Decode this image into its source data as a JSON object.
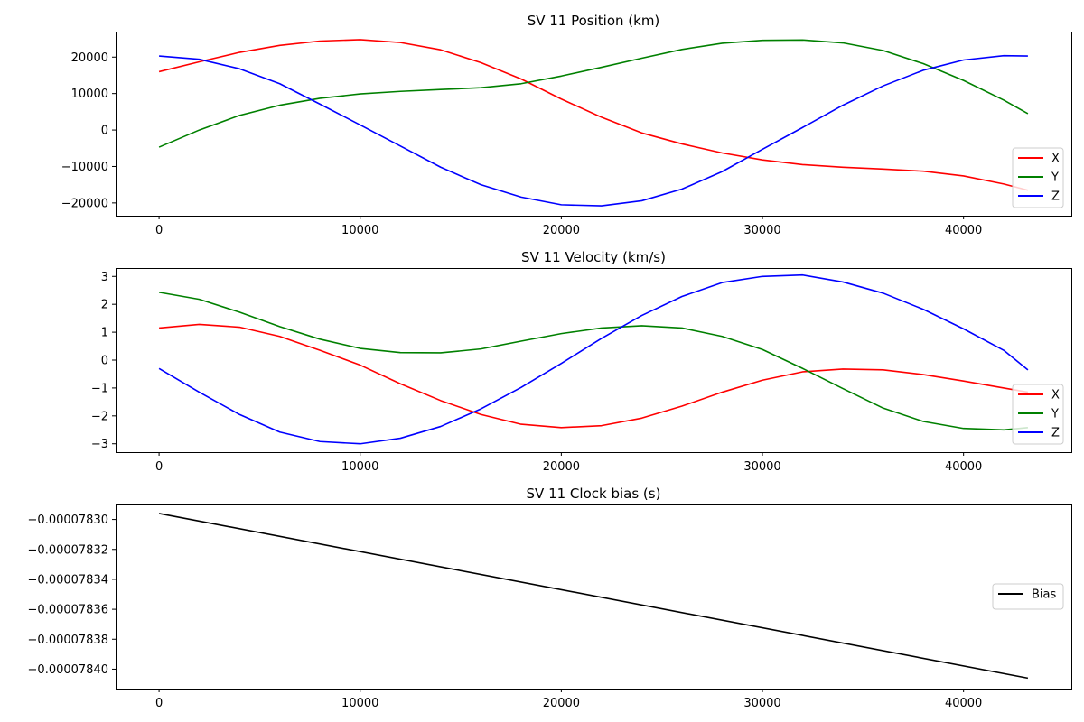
{
  "chart_data": [
    {
      "type": "line",
      "title": "SV 11 Position (km)",
      "xlabel": "",
      "ylabel": "",
      "xlim": [
        -2160,
        45360
      ],
      "ylim": [
        -23500,
        27000
      ],
      "xticks": [
        0,
        10000,
        20000,
        30000,
        40000
      ],
      "xtick_labels": [
        "0",
        "10000",
        "20000",
        "30000",
        "40000"
      ],
      "yticks": [
        -20000,
        -10000,
        0,
        10000,
        20000
      ],
      "ytick_labels": [
        "−20000",
        "−10000",
        "0",
        "10000",
        "20000"
      ],
      "grid": false,
      "legend": "lower-right",
      "x": [
        0,
        2000,
        4000,
        6000,
        8000,
        10000,
        12000,
        14000,
        16000,
        18000,
        20000,
        22000,
        24000,
        26000,
        28000,
        30000,
        32000,
        34000,
        36000,
        38000,
        40000,
        42000,
        43200
      ],
      "series": [
        {
          "name": "X",
          "color": "#ff0000",
          "values": [
            16000,
            18700,
            21300,
            23200,
            24400,
            24800,
            24000,
            22000,
            18500,
            14000,
            8500,
            3500,
            -800,
            -3800,
            -6300,
            -8200,
            -9500,
            -10200,
            -10700,
            -11300,
            -12600,
            -14800,
            -16500
          ]
        },
        {
          "name": "Y",
          "color": "#008000",
          "values": [
            -4700,
            0,
            4000,
            6800,
            8700,
            9900,
            10600,
            11100,
            11600,
            12700,
            14800,
            17200,
            19700,
            22100,
            23800,
            24600,
            24700,
            23900,
            21800,
            18200,
            13600,
            8200,
            4500
          ]
        },
        {
          "name": "Z",
          "color": "#0000ff",
          "values": [
            20300,
            19400,
            16800,
            12700,
            7100,
            1400,
            -4400,
            -10200,
            -15000,
            -18400,
            -20500,
            -20800,
            -19400,
            -16200,
            -11400,
            -5300,
            700,
            6800,
            12100,
            16400,
            19200,
            20400,
            20300
          ]
        }
      ]
    },
    {
      "type": "line",
      "title": "SV 11 Velocity (km/s)",
      "xlabel": "",
      "ylabel": "",
      "xlim": [
        -2160,
        45360
      ],
      "ylim": [
        -3.3,
        3.3
      ],
      "xticks": [
        0,
        10000,
        20000,
        30000,
        40000
      ],
      "xtick_labels": [
        "0",
        "10000",
        "20000",
        "30000",
        "40000"
      ],
      "yticks": [
        -3,
        -2,
        -1,
        0,
        1,
        2,
        3
      ],
      "ytick_labels": [
        "−3",
        "−2",
        "−1",
        "0",
        "1",
        "2",
        "3"
      ],
      "grid": false,
      "legend": "lower-right",
      "x": [
        0,
        2000,
        4000,
        6000,
        8000,
        10000,
        12000,
        14000,
        16000,
        18000,
        20000,
        22000,
        24000,
        26000,
        28000,
        30000,
        32000,
        34000,
        36000,
        38000,
        40000,
        42000,
        43200
      ],
      "series": [
        {
          "name": "X",
          "color": "#ff0000",
          "values": [
            1.15,
            1.28,
            1.18,
            0.85,
            0.35,
            -0.18,
            -0.85,
            -1.45,
            -1.95,
            -2.3,
            -2.42,
            -2.35,
            -2.08,
            -1.65,
            -1.15,
            -0.72,
            -0.42,
            -0.32,
            -0.35,
            -0.52,
            -0.75,
            -1.0,
            -1.15
          ]
        },
        {
          "name": "Y",
          "color": "#008000",
          "values": [
            2.43,
            2.18,
            1.72,
            1.2,
            0.75,
            0.42,
            0.27,
            0.26,
            0.4,
            0.68,
            0.95,
            1.15,
            1.23,
            1.15,
            0.85,
            0.38,
            -0.3,
            -1.02,
            -1.72,
            -2.2,
            -2.45,
            -2.5,
            -2.42
          ]
        },
        {
          "name": "Z",
          "color": "#0000ff",
          "values": [
            -0.3,
            -1.15,
            -1.95,
            -2.58,
            -2.92,
            -3.0,
            -2.8,
            -2.38,
            -1.75,
            -0.98,
            -0.12,
            0.78,
            1.6,
            2.28,
            2.78,
            3.0,
            3.05,
            2.8,
            2.4,
            1.82,
            1.12,
            0.35,
            -0.35
          ]
        }
      ]
    },
    {
      "type": "line",
      "title": "SV 11 Clock bias (s)",
      "xlabel": "",
      "ylabel": "",
      "xlim": [
        -2160,
        45360
      ],
      "ylim": [
        -7.8413e-05,
        -7.829e-05
      ],
      "xticks": [
        0,
        10000,
        20000,
        30000,
        40000
      ],
      "xtick_labels": [
        "0",
        "10000",
        "20000",
        "30000",
        "40000"
      ],
      "yticks": [
        -7.83e-05,
        -7.832e-05,
        -7.834e-05,
        -7.836e-05,
        -7.838e-05,
        -7.84e-05
      ],
      "ytick_labels": [
        "−0.00007830",
        "−0.00007832",
        "−0.00007834",
        "−0.00007836",
        "−0.00007838",
        "−0.00007840"
      ],
      "grid": false,
      "legend": "center-right",
      "x": [
        0,
        43200
      ],
      "series": [
        {
          "name": "Bias",
          "color": "#000000",
          "values": [
            -7.8296e-05,
            -7.8406e-05
          ]
        }
      ]
    }
  ]
}
